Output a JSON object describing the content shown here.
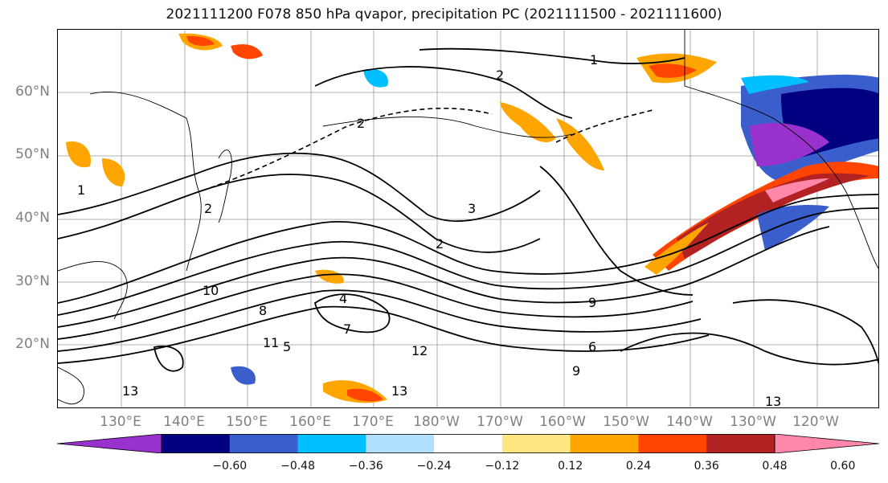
{
  "title": "2021111200 F078 850 hPa qvapor, precipitation PC (2021111500 - 2021111600)",
  "lat_labels": [
    "60°N",
    "50°N",
    "40°N",
    "30°N",
    "20°N"
  ],
  "lon_labels": [
    "130°E",
    "140°E",
    "150°E",
    "160°E",
    "170°E",
    "180°W",
    "170°W",
    "160°W",
    "150°W",
    "140°W",
    "130°W",
    "120°W"
  ],
  "colorbar": {
    "ticks": [
      "−0.60",
      "−0.48",
      "−0.36",
      "−0.24",
      "−0.12",
      "0.12",
      "0.24",
      "0.36",
      "0.48",
      "0.60"
    ],
    "colors": [
      "#9932cc",
      "#000080",
      "#3a5fcd",
      "#00bfff",
      "#b2e0ff",
      "#ffffff",
      "#ffe680",
      "#ffa500",
      "#ff4500",
      "#b22222",
      "#ff88aa"
    ]
  },
  "contour_labels": [
    "1",
    "1",
    "2",
    "2",
    "2",
    "2",
    "3",
    "4",
    "5",
    "6",
    "7",
    "8",
    "9",
    "10",
    "11",
    "12",
    "13",
    "13",
    "13",
    "9"
  ]
}
